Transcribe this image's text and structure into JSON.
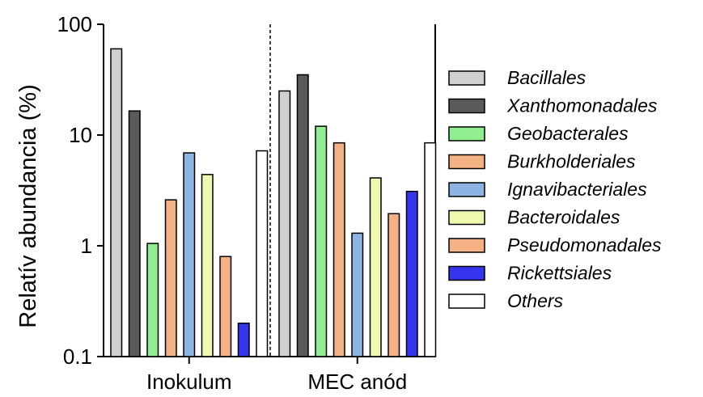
{
  "chart_data": {
    "type": "bar",
    "yscale": "log",
    "ylabel": "Relatív abundancia (%)",
    "ylim": [
      0.1,
      100
    ],
    "yticks": [
      {
        "value": 0.1,
        "label": "0.1"
      },
      {
        "value": 1,
        "label": "1"
      },
      {
        "value": 10,
        "label": "10"
      },
      {
        "value": 100,
        "label": "100"
      }
    ],
    "categories": [
      "Inokulum",
      "MEC anód"
    ],
    "series": [
      {
        "name": "Bacillales",
        "color": "#d0d0d0",
        "values": [
          60,
          25
        ]
      },
      {
        "name": "Xanthomonadales",
        "color": "#5a5a5a",
        "values": [
          16.5,
          35
        ]
      },
      {
        "name": "Geobacterales",
        "color": "#90ee90",
        "values": [
          1.05,
          12
        ]
      },
      {
        "name": "Burkholderiales",
        "color": "#f4b183",
        "values": [
          2.6,
          8.5
        ]
      },
      {
        "name": "Ignavibacteriales",
        "color": "#8db4e2",
        "values": [
          6.9,
          1.3
        ]
      },
      {
        "name": "Bacteroidales",
        "color": "#f0f8b0",
        "values": [
          4.4,
          4.1
        ]
      },
      {
        "name": "Pseudomonadales",
        "color": "#f4b183",
        "values": [
          0.8,
          1.95
        ]
      },
      {
        "name": "Rickettsiales",
        "color": "#3535ee",
        "values": [
          0.2,
          3.1
        ]
      },
      {
        "name": "Others",
        "color": "#ffffff",
        "values": [
          7.2,
          8.5
        ]
      }
    ],
    "legend_position": "right",
    "divider": "dashed"
  }
}
